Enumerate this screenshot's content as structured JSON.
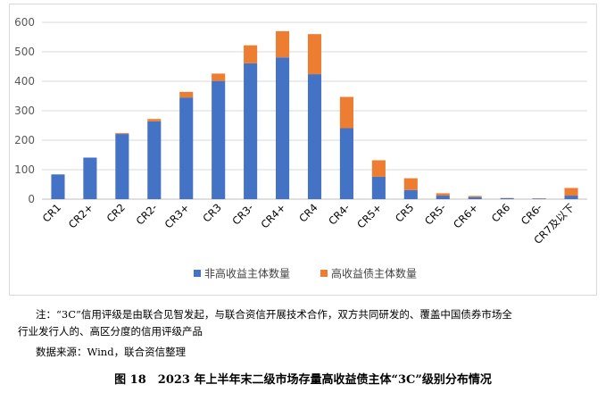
{
  "chart_data": {
    "type": "bar",
    "stacked": true,
    "categories": [
      "CR1",
      "CR2+",
      "CR2",
      "CR2-",
      "CR3+",
      "CR3",
      "CR3-",
      "CR4+",
      "CR4",
      "CR4-",
      "CR5+",
      "CR5",
      "CR5-",
      "CR6+",
      "CR6",
      "CR6-",
      "CR7及以下"
    ],
    "series": [
      {
        "name": "非高收益主体数量",
        "color": "#4472c4",
        "values": [
          84,
          141,
          221,
          264,
          345,
          401,
          461,
          481,
          424,
          241,
          76,
          31,
          12,
          7,
          3,
          2,
          12
        ]
      },
      {
        "name": "高收益债主体数量",
        "color": "#ed7d31",
        "values": [
          0,
          0,
          3,
          8,
          19,
          25,
          61,
          89,
          136,
          106,
          56,
          40,
          8,
          4,
          1,
          1,
          26
        ]
      }
    ],
    "y_ticks": [
      "0",
      "100",
      "200",
      "300",
      "400",
      "500",
      "600"
    ],
    "ylim": [
      0,
      600
    ],
    "grid": true,
    "legend_position": "bottom"
  },
  "note": {
    "line1": "注：“3C”信用评级是由联合见智发起，与联合资信开展技术合作，双方共同研发的、覆盖中国债券市场全",
    "line2": "行业发行人的、高区分度的信用评级产品"
  },
  "source": "数据来源：Wind，联合资信整理",
  "caption": "图 18　2023 年上半年末二级市场存量高收益债主体“3C”级别分布情况"
}
